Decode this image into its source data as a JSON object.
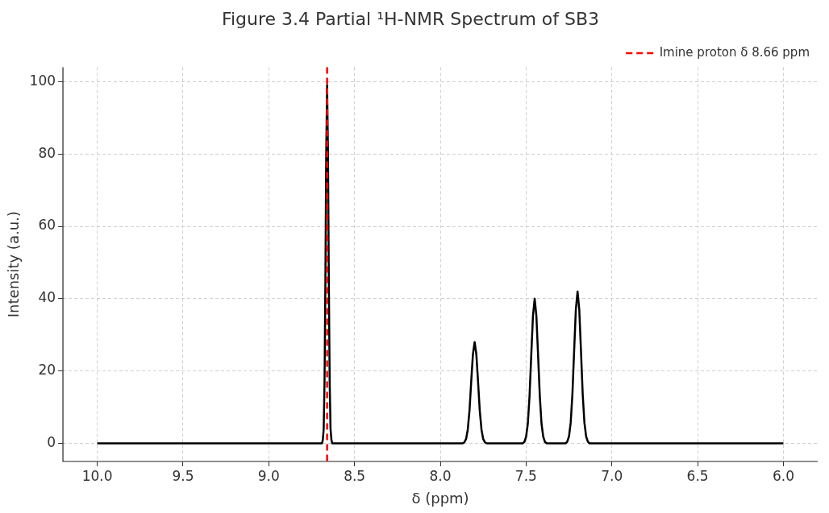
{
  "chart_data": {
    "type": "line",
    "title": "Figure 3.4 Partial ¹H-NMR Spectrum of SB3",
    "xlabel": "δ (ppm)",
    "ylabel": "Intensity (a.u.)",
    "series": [
      {
        "color": "#000000",
        "x": [
          10.0,
          8.7,
          8.69,
          8.685,
          8.68,
          8.675,
          8.67,
          8.665,
          8.66,
          8.655,
          8.65,
          8.645,
          8.64,
          8.635,
          8.63,
          8.62,
          7.87,
          7.86,
          7.85,
          7.84,
          7.83,
          7.82,
          7.81,
          7.8,
          7.79,
          7.78,
          7.77,
          7.76,
          7.75,
          7.74,
          7.73,
          7.52,
          7.51,
          7.5,
          7.49,
          7.48,
          7.47,
          7.46,
          7.45,
          7.44,
          7.43,
          7.42,
          7.41,
          7.4,
          7.39,
          7.38,
          7.27,
          7.26,
          7.25,
          7.24,
          7.23,
          7.22,
          7.21,
          7.2,
          7.19,
          7.18,
          7.17,
          7.16,
          7.15,
          7.14,
          7.13,
          6.0
        ],
        "values": [
          0,
          0,
          0,
          1,
          4,
          17,
          45,
          81,
          99,
          81,
          45,
          17,
          4,
          1,
          0,
          0,
          0,
          0.3,
          1.2,
          3.8,
          9,
          17,
          24.6,
          28,
          24.6,
          17,
          9,
          3.8,
          1.2,
          0.3,
          0,
          0,
          0.4,
          1.8,
          5.4,
          13,
          24.3,
          35.2,
          40,
          35.2,
          24.3,
          13,
          5.4,
          1.8,
          0.4,
          0,
          0,
          0.5,
          1.9,
          5.7,
          13.6,
          25.5,
          37,
          42,
          37,
          25.5,
          13.6,
          5.7,
          1.9,
          0.5,
          0,
          0
        ]
      }
    ],
    "xlim": [
      10.2,
      5.8
    ],
    "ylim": [
      -5,
      104
    ],
    "xticks": [
      {
        "value": 10,
        "label": "10.0"
      },
      {
        "value": 9.5,
        "label": "9.5"
      },
      {
        "value": 9,
        "label": "9.0"
      },
      {
        "value": 8.5,
        "label": "8.5"
      },
      {
        "value": 8,
        "label": "8.0"
      },
      {
        "value": 7.5,
        "label": "7.5"
      },
      {
        "value": 7,
        "label": "7.0"
      },
      {
        "value": 6.5,
        "label": "6.5"
      },
      {
        "value": 6,
        "label": "6.0"
      }
    ],
    "yticks": [
      0,
      20,
      40,
      60,
      80,
      100
    ],
    "ref_lines": [
      {
        "axis": "x",
        "value": 8.66,
        "label": "Imine proton δ 8.66 ppm",
        "color": "#ff0000",
        "line_style": "dashed"
      }
    ],
    "grid": true,
    "legend": "top right",
    "marker": "none",
    "line_style": "solid"
  }
}
